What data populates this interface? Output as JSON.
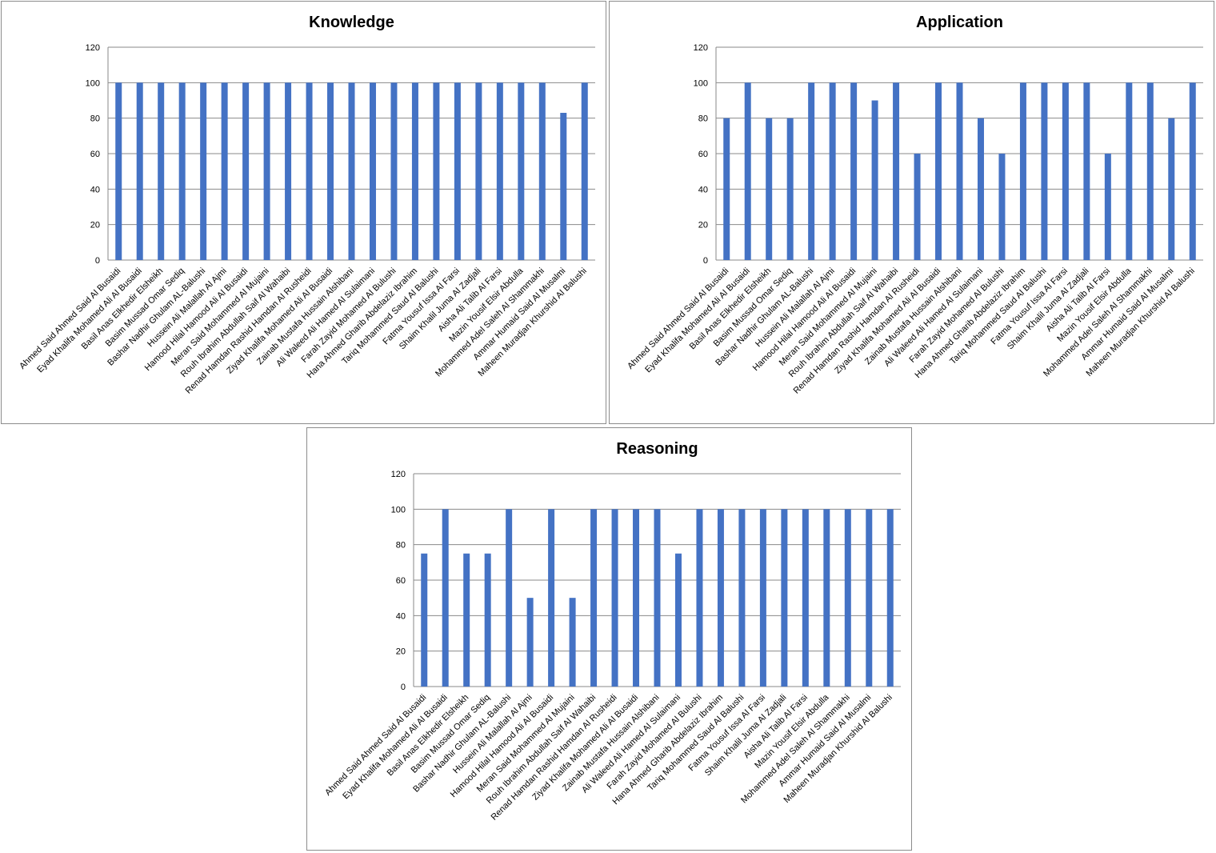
{
  "chart_data": [
    {
      "type": "bar",
      "title": "Knowledge",
      "xlabel": "",
      "ylabel": "",
      "ylim": [
        0,
        120
      ],
      "yticks": [
        0,
        20,
        40,
        60,
        80,
        100,
        120
      ],
      "grid": true,
      "bar_color": "#4472c4",
      "categories": [
        "Ahmed Said Ahmed  Said Al Busaidi",
        "Eyad Khalifa Mohamed Ali Al Busaidi",
        "Basil Anas Elkhedir Elsheikh",
        "Basim Mussad Omar Sediq",
        "Bashar Nadhir Ghulam AL-Balushi",
        "Hussein Ali Malallah  Al Ajmi",
        "Hamood Hilal Hamood  Ali  Al Busaidi",
        "Meran Said Mohammed Al Mujaini",
        "Rouh Ibrahim Abdullah Saif Al Wahaibi",
        "Renad Hamdan Rashid Hamdan  Al Rusheidi",
        "Ziyad Khalifa Mohamed Ali Al Busaidi",
        "Zainab Mustafa  Hussain Alshibani",
        "Ali Waleed Ali Hamed  Al Sulaimani",
        "Farah Zayid Mohamed Al Bulushi",
        "Hana Ahmed Gharib Abdelaziz Ibrahim",
        "Tariq Mohammed Saud Al Balushi",
        "Fatma Yousuf Issa Al Farsi",
        "Shaim  Khalil Juma Al Zadjali",
        "Aisha Ali Talib Al Farsi",
        "Mazin Yousif Elsir  Abdulla",
        "Mohammed Adel Saleh Al Shammakhi",
        "Ammar Humaid Said Al Musalmi",
        "Maheen Muradjan Khurshid  Al Balushi"
      ],
      "values": [
        100,
        100,
        100,
        100,
        100,
        100,
        100,
        100,
        100,
        100,
        100,
        100,
        100,
        100,
        100,
        100,
        100,
        100,
        100,
        100,
        100,
        83,
        100
      ]
    },
    {
      "type": "bar",
      "title": "Application",
      "xlabel": "",
      "ylabel": "",
      "ylim": [
        0,
        120
      ],
      "yticks": [
        0,
        20,
        40,
        60,
        80,
        100,
        120
      ],
      "grid": true,
      "bar_color": "#4472c4",
      "categories": [
        "Ahmed Said Ahmed  Said Al Busaidi",
        "Eyad Khalifa Mohamed Ali Al Busaidi",
        "Basil Anas Elkhedir Elsheikh",
        "Basim Mussad Omar Sediq",
        "Bashar Nadhir Ghulam AL-Balushi",
        "Hussein Ali Malallah  Al Ajmi",
        "Hamood Hilal Hamood  Ali  Al Busaidi",
        "Meran Said Mohammed Al Mujaini",
        "Rouh Ibrahim Abdullah Saif Al Wahaibi",
        "Renad Hamdan Rashid Hamdan  Al Rusheidi",
        "Ziyad Khalifa Mohamed Ali Al Busaidi",
        "Zainab Mustafa  Hussain Alshibani",
        "Ali Waleed Ali Hamed  Al Sulaimani",
        "Farah Zayid Mohamed Al Bulushi",
        "Hana Ahmed Gharib Abdelaziz Ibrahim",
        "Tariq Mohammed Saud Al Balushi",
        "Fatma Yousuf Issa Al Farsi",
        "Shaim  Khalil Juma Al Zadjali",
        "Aisha Ali Talib Al Farsi",
        "Mazin Yousif Elsir  Abdulla",
        "Mohammed Adel Saleh Al Shammakhi",
        "Ammar Humaid Said Al Musalmi",
        "Maheen Muradjan Khurshid  Al Balushi"
      ],
      "values": [
        80,
        100,
        80,
        80,
        100,
        100,
        100,
        90,
        100,
        60,
        100,
        100,
        80,
        60,
        100,
        100,
        100,
        100,
        60,
        100,
        100,
        80,
        100
      ]
    },
    {
      "type": "bar",
      "title": "Reasoning",
      "xlabel": "",
      "ylabel": "",
      "ylim": [
        0,
        120
      ],
      "yticks": [
        0,
        20,
        40,
        60,
        80,
        100,
        120
      ],
      "grid": true,
      "bar_color": "#4472c4",
      "categories": [
        "Ahmed Said Ahmed  Said Al Busaidi",
        "Eyad Khalifa Mohamed Ali Al Busaidi",
        "Basil Anas Elkhedir Elsheikh",
        "Basim Mussad Omar Sediq",
        "Bashar Nadhir Ghulam AL-Balushi",
        "Hussein Ali Malallah  Al Ajmi",
        "Hamood Hilal Hamood  Ali  Al Busaidi",
        "Meran Said Mohammed Al Mujaini",
        "Rouh Ibrahim Abdullah Saif Al Wahaibi",
        "Renad Hamdan Rashid Hamdan  Al Rusheidi",
        "Ziyad Khalifa Mohamed Ali Al Busaidi",
        "Zainab Mustafa  Hussain Alshibani",
        "Ali Waleed Ali Hamed  Al Sulaimani",
        "Farah Zayid Mohamed Al Bulushi",
        "Hana Ahmed Gharib Abdelaziz Ibrahim",
        "Tariq Mohammed Saud Al Balushi",
        "Fatma Yousuf Issa Al Farsi",
        "Shaim  Khalil Juma Al Zadjali",
        "Aisha Ali Talib Al Farsi",
        "Mazin Yousif Elsir  Abdulla",
        "Mohammed Adel Saleh Al Shammakhi",
        "Ammar Humaid Said Al Musalmi",
        "Maheen Muradjan Khurshid  Al Balushi"
      ],
      "values": [
        75,
        100,
        75,
        75,
        100,
        50,
        100,
        50,
        100,
        100,
        100,
        100,
        75,
        100,
        100,
        100,
        100,
        100,
        100,
        100,
        100,
        100,
        100
      ]
    }
  ]
}
